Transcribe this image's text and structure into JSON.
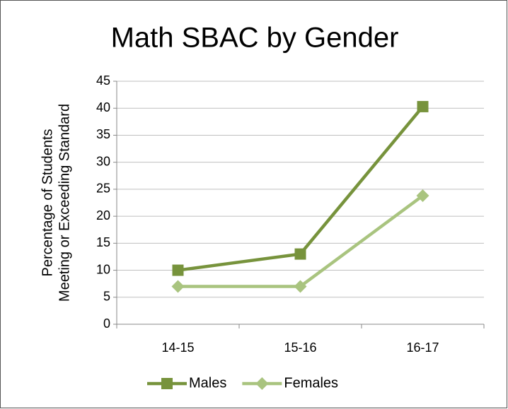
{
  "chart_data": {
    "type": "line",
    "title": "Math SBAC by Gender",
    "ylabel": [
      "Percentage of Students",
      "Meeting or Exceeding Standard"
    ],
    "categories": [
      "14-15",
      "15-16",
      "16-17"
    ],
    "series": [
      {
        "name": "Males",
        "color": "#77933c",
        "marker": "square",
        "values": [
          10,
          13,
          40.3
        ]
      },
      {
        "name": "Females",
        "color": "#a9c47f",
        "marker": "diamond",
        "values": [
          7,
          7,
          23.8
        ]
      }
    ],
    "ylim": [
      0,
      45
    ],
    "yticks": [
      0,
      5,
      10,
      15,
      20,
      25,
      30,
      35,
      40,
      45
    ],
    "grid": true,
    "legend": "bottom"
  }
}
